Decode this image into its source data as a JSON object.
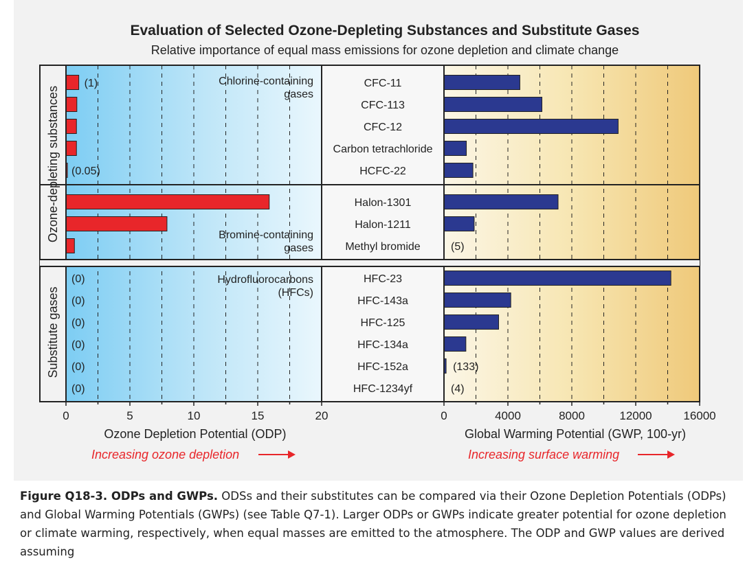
{
  "chart_data": {
    "type": "bar",
    "title": "Evaluation of Selected Ozone-Depleting Substances and Substitute Gases",
    "subtitle": "Relative importance of equal mass emissions for ozone depletion and climate change",
    "side_labels": [
      "Ozone-depleting substances",
      "Substitute gases"
    ],
    "group_labels": {
      "chlorine": [
        "Chlorine-containing",
        "gases"
      ],
      "bromine": [
        "Bromine-containing",
        "gases"
      ],
      "hfc": [
        "Hydrofluorocarbons",
        "(HFCs)"
      ]
    },
    "left_axis": {
      "label": "Ozone Depletion Potential (ODP)",
      "range": [
        0,
        20
      ],
      "ticks": [
        "0",
        "5",
        "10",
        "15",
        "20"
      ],
      "arrow_label": "Increasing ozone depletion"
    },
    "right_axis": {
      "label": "Global Warming Potential (GWP, 100-yr)",
      "range": [
        0,
        16000
      ],
      "ticks": [
        "0",
        "4000",
        "8000",
        "12000",
        "16000"
      ],
      "arrow_label": "Increasing surface warming"
    },
    "rows": [
      {
        "name": "CFC-11",
        "odp": 1,
        "gwp": 4750,
        "odp_label": "(1)"
      },
      {
        "name": "CFC-113",
        "odp": 0.85,
        "gwp": 6130
      },
      {
        "name": "CFC-12",
        "odp": 0.82,
        "gwp": 10900
      },
      {
        "name": "Carbon tetrachloride",
        "odp": 0.82,
        "gwp": 1400
      },
      {
        "name": "HCFC-22",
        "odp": 0.05,
        "gwp": 1810,
        "odp_label": "(0.05)"
      },
      {
        "name": "Halon-1301",
        "odp": 15.9,
        "gwp": 7140
      },
      {
        "name": "Halon-1211",
        "odp": 7.9,
        "gwp": 1890
      },
      {
        "name": "Methyl bromide",
        "odp": 0.66,
        "gwp": 5,
        "gwp_label": "(5)"
      },
      {
        "name": "HFC-23",
        "odp": 0,
        "gwp": 14200,
        "odp_label": "(0)"
      },
      {
        "name": "HFC-143a",
        "odp": 0,
        "gwp": 4180,
        "odp_label": "(0)"
      },
      {
        "name": "HFC-125",
        "odp": 0,
        "gwp": 3420,
        "odp_label": "(0)"
      },
      {
        "name": "HFC-134a",
        "odp": 0,
        "gwp": 1370,
        "odp_label": "(0)"
      },
      {
        "name": "HFC-152a",
        "odp": 0,
        "gwp": 133,
        "odp_label": "(0)",
        "gwp_label": "(133)"
      },
      {
        "name": "HFC-1234yf",
        "odp": 0,
        "gwp": 4,
        "odp_label": "(0)",
        "gwp_label": "(4)"
      }
    ]
  },
  "caption": {
    "bold": "Figure Q18-3. ODPs and GWPs.",
    "text": " ODSs and their substitutes can be compared via their Ozone Depletion Potentials (ODPs) and Global Warming Potentials (GWPs) (see Table Q7-1). Larger ODPs or GWPs indicate greater potential for ozone depletion or climate warming, respectively, when equal masses are emitted to the atmosphere. The ODP and GWP values are derived assuming"
  },
  "colors": {
    "odp_bar": "#e8262a",
    "gwp_bar": "#2b3990",
    "arrow": "#e8262a"
  }
}
